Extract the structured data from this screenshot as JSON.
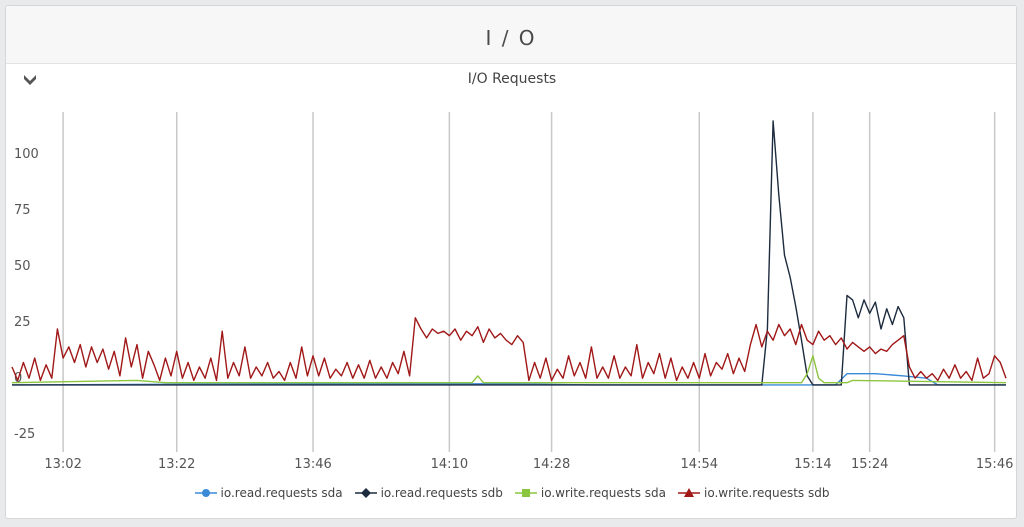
{
  "panel": {
    "title": "I / O"
  },
  "chart_data": {
    "type": "line",
    "title": "I/O Requests",
    "xlabel": "",
    "ylabel": "",
    "x_ticks": [
      "13:02",
      "13:22",
      "13:46",
      "14:10",
      "14:28",
      "14:54",
      "15:14",
      "15:24",
      "15:46"
    ],
    "x_range": [
      "12:53",
      "15:48"
    ],
    "y_ticks": [
      -25,
      0,
      25,
      50,
      75,
      100
    ],
    "ylim": [
      -30,
      122
    ],
    "grid": {
      "x": true,
      "y": false
    },
    "legend_position": "bottom",
    "series": [
      {
        "name": "io.read.requests sda",
        "color": "#3b8ad8",
        "marker": "circle",
        "points": [
          [
            "12:53",
            0
          ],
          [
            "13:40",
            0.5
          ],
          [
            "14:20",
            0.5
          ],
          [
            "14:35",
            0
          ],
          [
            "15:18",
            0
          ],
          [
            "15:20",
            5
          ],
          [
            "15:25",
            5
          ],
          [
            "15:30",
            4
          ],
          [
            "15:34",
            3
          ],
          [
            "15:36",
            0
          ],
          [
            "15:48",
            0
          ]
        ]
      },
      {
        "name": "io.read.requests sdb",
        "color": "#1c2b3e",
        "marker": "diamond",
        "points": [
          [
            "12:53",
            0
          ],
          [
            "15:05",
            0
          ],
          [
            "15:06",
            25
          ],
          [
            "15:07",
            118
          ],
          [
            "15:08",
            85
          ],
          [
            "15:09",
            58
          ],
          [
            "15:10",
            48
          ],
          [
            "15:11",
            35
          ],
          [
            "15:12",
            20
          ],
          [
            "15:13",
            4
          ],
          [
            "15:14",
            0
          ],
          [
            "15:19",
            0
          ],
          [
            "15:20",
            40
          ],
          [
            "15:21",
            38
          ],
          [
            "15:22",
            30
          ],
          [
            "15:23",
            38
          ],
          [
            "15:24",
            32
          ],
          [
            "15:25",
            37
          ],
          [
            "15:26",
            25
          ],
          [
            "15:27",
            34
          ],
          [
            "15:28",
            27
          ],
          [
            "15:29",
            35
          ],
          [
            "15:30",
            30
          ],
          [
            "15:31",
            0
          ],
          [
            "15:48",
            0
          ]
        ]
      },
      {
        "name": "io.write.requests sda",
        "color": "#8cc63f",
        "marker": "square",
        "points": [
          [
            "12:53",
            1
          ],
          [
            "13:15",
            2
          ],
          [
            "13:20",
            1
          ],
          [
            "14:14",
            1
          ],
          [
            "14:15",
            4
          ],
          [
            "14:16",
            1
          ],
          [
            "15:12",
            1
          ],
          [
            "15:13",
            5
          ],
          [
            "15:14",
            13
          ],
          [
            "15:15",
            3
          ],
          [
            "15:16",
            1
          ],
          [
            "15:20",
            1
          ],
          [
            "15:21",
            2
          ],
          [
            "15:48",
            1
          ]
        ]
      },
      {
        "name": "io.write.requests sdb",
        "color": "#a01818",
        "marker": "triangle",
        "points": [
          [
            "12:53",
            8
          ],
          [
            "12:54",
            2
          ],
          [
            "12:55",
            10
          ],
          [
            "12:56",
            3
          ],
          [
            "12:57",
            12
          ],
          [
            "12:58",
            2
          ],
          [
            "12:59",
            9
          ],
          [
            "13:00",
            3
          ],
          [
            "13:01",
            25
          ],
          [
            "13:02",
            12
          ],
          [
            "13:03",
            17
          ],
          [
            "13:04",
            10
          ],
          [
            "13:05",
            18
          ],
          [
            "13:06",
            8
          ],
          [
            "13:07",
            17
          ],
          [
            "13:08",
            10
          ],
          [
            "13:09",
            16
          ],
          [
            "13:10",
            7
          ],
          [
            "13:11",
            15
          ],
          [
            "13:12",
            4
          ],
          [
            "13:13",
            21
          ],
          [
            "13:14",
            8
          ],
          [
            "13:15",
            18
          ],
          [
            "13:16",
            3
          ],
          [
            "13:17",
            15
          ],
          [
            "13:18",
            9
          ],
          [
            "13:19",
            2
          ],
          [
            "13:20",
            12
          ],
          [
            "13:21",
            4
          ],
          [
            "13:22",
            15
          ],
          [
            "13:23",
            3
          ],
          [
            "13:24",
            10
          ],
          [
            "13:25",
            2
          ],
          [
            "13:26",
            8
          ],
          [
            "13:27",
            3
          ],
          [
            "13:28",
            12
          ],
          [
            "13:29",
            2
          ],
          [
            "13:30",
            24
          ],
          [
            "13:31",
            3
          ],
          [
            "13:32",
            10
          ],
          [
            "13:33",
            4
          ],
          [
            "13:34",
            17
          ],
          [
            "13:35",
            3
          ],
          [
            "13:36",
            8
          ],
          [
            "13:37",
            4
          ],
          [
            "13:38",
            10
          ],
          [
            "13:39",
            3
          ],
          [
            "13:40",
            6
          ],
          [
            "13:41",
            2
          ],
          [
            "13:42",
            10
          ],
          [
            "13:43",
            3
          ],
          [
            "13:44",
            17
          ],
          [
            "13:45",
            4
          ],
          [
            "13:46",
            13
          ],
          [
            "13:47",
            4
          ],
          [
            "13:48",
            12
          ],
          [
            "13:49",
            3
          ],
          [
            "13:50",
            7
          ],
          [
            "13:51",
            4
          ],
          [
            "13:52",
            10
          ],
          [
            "13:53",
            3
          ],
          [
            "13:54",
            9
          ],
          [
            "13:55",
            3
          ],
          [
            "13:56",
            11
          ],
          [
            "13:57",
            3
          ],
          [
            "13:58",
            8
          ],
          [
            "13:59",
            3
          ],
          [
            "14:00",
            10
          ],
          [
            "14:01",
            5
          ],
          [
            "14:02",
            15
          ],
          [
            "14:03",
            4
          ],
          [
            "14:04",
            30
          ],
          [
            "14:05",
            25
          ],
          [
            "14:06",
            21
          ],
          [
            "14:07",
            25
          ],
          [
            "14:08",
            23
          ],
          [
            "14:09",
            24
          ],
          [
            "14:10",
            22
          ],
          [
            "14:11",
            25
          ],
          [
            "14:12",
            20
          ],
          [
            "14:13",
            24
          ],
          [
            "14:14",
            22
          ],
          [
            "14:15",
            26
          ],
          [
            "14:16",
            19
          ],
          [
            "14:17",
            25
          ],
          [
            "14:18",
            21
          ],
          [
            "14:19",
            23
          ],
          [
            "14:20",
            20
          ],
          [
            "14:21",
            18
          ],
          [
            "14:22",
            22
          ],
          [
            "14:23",
            19
          ],
          [
            "14:24",
            2
          ],
          [
            "14:25",
            10
          ],
          [
            "14:26",
            3
          ],
          [
            "14:27",
            12
          ],
          [
            "14:28",
            2
          ],
          [
            "14:29",
            7
          ],
          [
            "14:30",
            3
          ],
          [
            "14:31",
            13
          ],
          [
            "14:32",
            4
          ],
          [
            "14:33",
            10
          ],
          [
            "14:34",
            3
          ],
          [
            "14:35",
            17
          ],
          [
            "14:36",
            3
          ],
          [
            "14:37",
            8
          ],
          [
            "14:38",
            3
          ],
          [
            "14:39",
            13
          ],
          [
            "14:40",
            3
          ],
          [
            "14:41",
            8
          ],
          [
            "14:42",
            4
          ],
          [
            "14:43",
            18
          ],
          [
            "14:44",
            3
          ],
          [
            "14:45",
            10
          ],
          [
            "14:46",
            5
          ],
          [
            "14:47",
            14
          ],
          [
            "14:48",
            3
          ],
          [
            "14:49",
            12
          ],
          [
            "14:50",
            2
          ],
          [
            "14:51",
            8
          ],
          [
            "14:52",
            3
          ],
          [
            "14:53",
            10
          ],
          [
            "14:54",
            3
          ],
          [
            "14:55",
            14
          ],
          [
            "14:56",
            4
          ],
          [
            "14:57",
            10
          ],
          [
            "14:58",
            7
          ],
          [
            "14:59",
            14
          ],
          [
            "15:00",
            5
          ],
          [
            "15:01",
            12
          ],
          [
            "15:02",
            6
          ],
          [
            "15:03",
            18
          ],
          [
            "15:04",
            27
          ],
          [
            "15:05",
            17
          ],
          [
            "15:06",
            24
          ],
          [
            "15:07",
            20
          ],
          [
            "15:08",
            27
          ],
          [
            "15:09",
            22
          ],
          [
            "15:10",
            25
          ],
          [
            "15:11",
            18
          ],
          [
            "15:12",
            27
          ],
          [
            "15:13",
            20
          ],
          [
            "15:14",
            18
          ],
          [
            "15:15",
            24
          ],
          [
            "15:16",
            20
          ],
          [
            "15:17",
            22
          ],
          [
            "15:18",
            18
          ],
          [
            "15:19",
            21
          ],
          [
            "15:20",
            16
          ],
          [
            "15:21",
            19
          ],
          [
            "15:22",
            17
          ],
          [
            "15:23",
            15
          ],
          [
            "15:24",
            17
          ],
          [
            "15:25",
            14
          ],
          [
            "15:26",
            16
          ],
          [
            "15:27",
            15
          ],
          [
            "15:28",
            18
          ],
          [
            "15:29",
            20
          ],
          [
            "15:30",
            22
          ],
          [
            "15:31",
            8
          ],
          [
            "15:32",
            3
          ],
          [
            "15:33",
            6
          ],
          [
            "15:34",
            3
          ],
          [
            "15:35",
            5
          ],
          [
            "15:36",
            2
          ],
          [
            "15:37",
            7
          ],
          [
            "15:38",
            3
          ],
          [
            "15:39",
            9
          ],
          [
            "15:40",
            3
          ],
          [
            "15:41",
            6
          ],
          [
            "15:42",
            2
          ],
          [
            "15:43",
            12
          ],
          [
            "15:44",
            3
          ],
          [
            "15:45",
            5
          ],
          [
            "15:46",
            13
          ],
          [
            "15:47",
            10
          ],
          [
            "15:48",
            3
          ]
        ]
      }
    ]
  }
}
